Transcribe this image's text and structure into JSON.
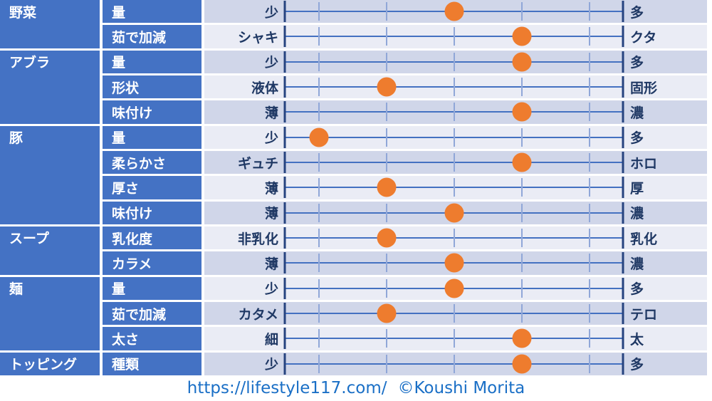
{
  "colors": {
    "header_blue": "#4472C4",
    "row_odd": "#D0D6E9",
    "row_even": "#EAECF5",
    "track_line": "#4471C1",
    "tick": "#90A7D8",
    "end_bar": "#26437F",
    "dot_orange": "#EE7C2E",
    "label_navy": "#1F3864",
    "footer_blue": "#1A6FC6"
  },
  "groups": [
    {
      "label": "野菜",
      "rows": 2
    },
    {
      "label": "アブラ",
      "rows": 3
    },
    {
      "label": "豚",
      "rows": 4
    },
    {
      "label": "スープ",
      "rows": 2
    },
    {
      "label": "麺",
      "rows": 3
    },
    {
      "label": "トッピング",
      "rows": 1
    }
  ],
  "chart_data": {
    "type": "scatter",
    "title": "",
    "xlabel": "",
    "ylabel": "",
    "xlim": [
      0,
      10
    ],
    "tick_positions": [
      1,
      3,
      5,
      7,
      9
    ],
    "grid": "off",
    "legend": "none",
    "rows": [
      {
        "group": "野菜",
        "attribute": "量",
        "left": "少",
        "right": "多",
        "value": 5
      },
      {
        "group": "野菜",
        "attribute": "茹で加減",
        "left": "シャキ",
        "right": "クタ",
        "value": 7
      },
      {
        "group": "アブラ",
        "attribute": "量",
        "left": "少",
        "right": "多",
        "value": 7
      },
      {
        "group": "アブラ",
        "attribute": "形状",
        "left": "液体",
        "right": "固形",
        "value": 3
      },
      {
        "group": "アブラ",
        "attribute": "味付け",
        "left": "薄",
        "right": "濃",
        "value": 7
      },
      {
        "group": "豚",
        "attribute": "量",
        "left": "少",
        "right": "多",
        "value": 1
      },
      {
        "group": "豚",
        "attribute": "柔らかさ",
        "left": "ギュチ",
        "right": "ホロ",
        "value": 7
      },
      {
        "group": "豚",
        "attribute": "厚さ",
        "left": "薄",
        "right": "厚",
        "value": 3
      },
      {
        "group": "豚",
        "attribute": "味付け",
        "left": "薄",
        "right": "濃",
        "value": 5
      },
      {
        "group": "スープ",
        "attribute": "乳化度",
        "left": "非乳化",
        "right": "乳化",
        "value": 3
      },
      {
        "group": "スープ",
        "attribute": "カラメ",
        "left": "薄",
        "right": "濃",
        "value": 5
      },
      {
        "group": "麺",
        "attribute": "量",
        "left": "少",
        "right": "多",
        "value": 5
      },
      {
        "group": "麺",
        "attribute": "茹で加減",
        "left": "カタメ",
        "right": "テロ",
        "value": 3
      },
      {
        "group": "麺",
        "attribute": "太さ",
        "left": "細",
        "right": "太",
        "value": 7
      },
      {
        "group": "トッピング",
        "attribute": "種類",
        "left": "少",
        "right": "多",
        "value": 7
      }
    ]
  },
  "footer": {
    "url": "https://lifestyle117.com/",
    "credit": "©Koushi Morita"
  }
}
